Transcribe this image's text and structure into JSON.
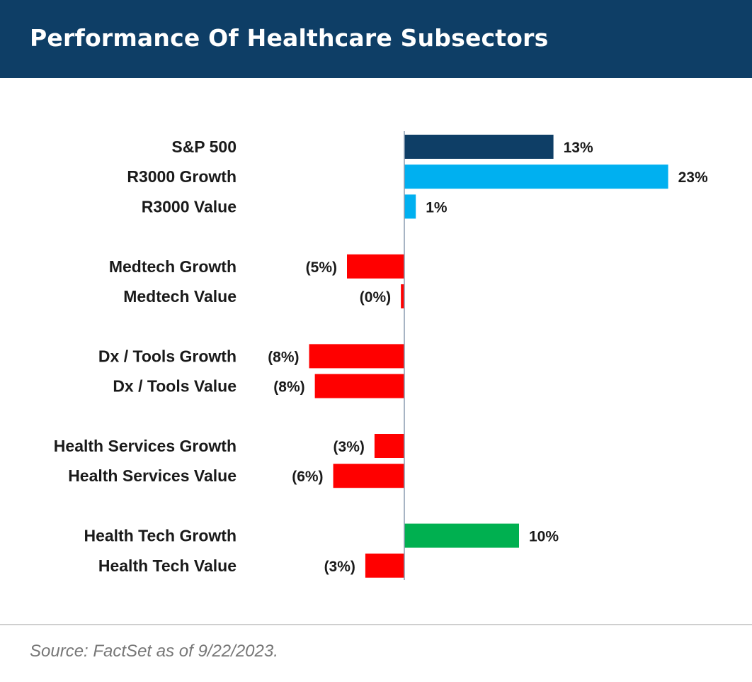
{
  "header": {
    "title": "Performance Of Healthcare Subsectors"
  },
  "colors": {
    "header_bg": "#0e3e66",
    "sp500": "#0e3e66",
    "r3000": "#00b0f0",
    "negative": "#ff0000",
    "positive_health": "#00b050",
    "axis": "#8a9bb0"
  },
  "chart_data": {
    "type": "bar",
    "orientation": "horizontal",
    "title": "Performance Of Healthcare Subsectors",
    "xlabel": "",
    "ylabel": "",
    "grid": false,
    "legend": "none",
    "xlim": [
      -9.5,
      24
    ],
    "groups": [
      {
        "bars": [
          {
            "category": "S&P 500",
            "value": 13,
            "label": "13%",
            "color": "#0e3e66"
          },
          {
            "category": "R3000 Growth",
            "value": 23,
            "label": "23%",
            "color": "#00b0f0"
          },
          {
            "category": "R3000 Value",
            "value": 1,
            "label": "1%",
            "color": "#00b0f0"
          }
        ]
      },
      {
        "bars": [
          {
            "category": "Medtech Growth",
            "value": -5,
            "label": "(5%)",
            "color": "#ff0000"
          },
          {
            "category": "Medtech Value",
            "value": -0.3,
            "label": "(0%)",
            "color": "#ff0000"
          }
        ]
      },
      {
        "bars": [
          {
            "category": "Dx / Tools Growth",
            "value": -8.3,
            "label": "(8%)",
            "color": "#ff0000"
          },
          {
            "category": "Dx / Tools Value",
            "value": -7.8,
            "label": "(8%)",
            "color": "#ff0000"
          }
        ]
      },
      {
        "bars": [
          {
            "category": "Health Services Growth",
            "value": -2.6,
            "label": "(3%)",
            "color": "#ff0000"
          },
          {
            "category": "Health Services Value",
            "value": -6.2,
            "label": "(6%)",
            "color": "#ff0000"
          }
        ]
      },
      {
        "bars": [
          {
            "category": "Health Tech Growth",
            "value": 10,
            "label": "10%",
            "color": "#00b050"
          },
          {
            "category": "Health Tech Value",
            "value": -3.4,
            "label": "(3%)",
            "color": "#ff0000"
          }
        ]
      }
    ]
  },
  "footer": {
    "source": "Source: FactSet as of 9/22/2023."
  }
}
